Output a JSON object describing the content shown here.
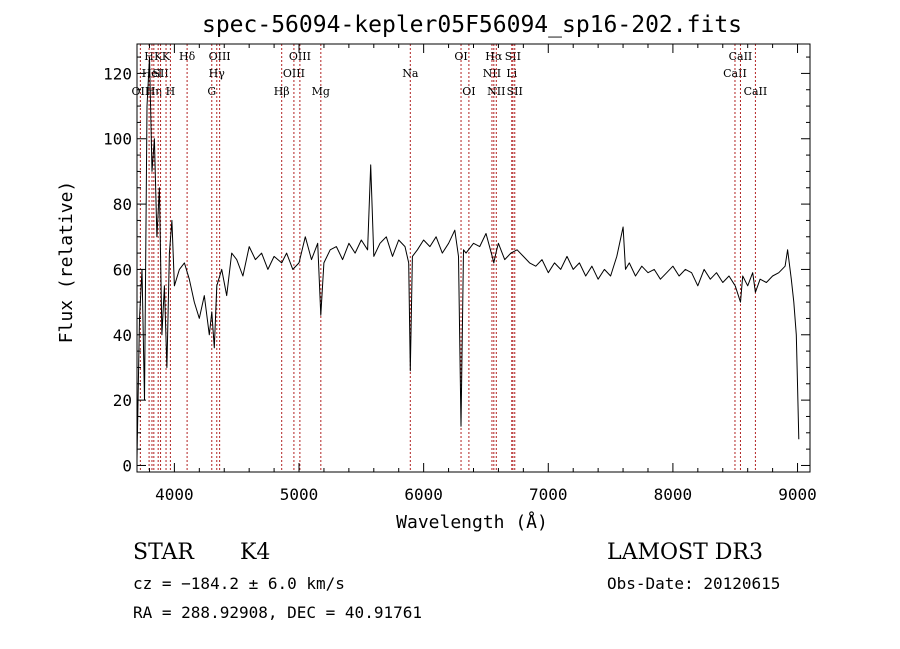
{
  "chart_data": {
    "type": "line",
    "title": "spec-56094-kepler05F56094_sp16-202.fits",
    "xlabel": "Wavelength (Å)",
    "ylabel": "Flux (relative)",
    "xlim": [
      3700,
      9100
    ],
    "ylim": [
      -2,
      129
    ],
    "xticks": [
      4000,
      5000,
      6000,
      7000,
      8000,
      9000
    ],
    "xtick_labels": [
      "4000",
      "5000",
      "6000",
      "7000",
      "8000",
      "9000"
    ],
    "yticks": [
      0,
      20,
      40,
      60,
      80,
      100,
      120
    ],
    "ytick_labels": [
      "0",
      "20",
      "40",
      "60",
      "80",
      "100",
      "120"
    ],
    "grid": false,
    "line_color": "#000000",
    "marker_color": "#b22222",
    "series": [
      {
        "name": "flux",
        "x": [
          3700,
          3720,
          3740,
          3760,
          3780,
          3800,
          3820,
          3840,
          3860,
          3880,
          3900,
          3920,
          3940,
          3960,
          3980,
          4000,
          4040,
          4080,
          4120,
          4160,
          4200,
          4240,
          4280,
          4300,
          4320,
          4340,
          4380,
          4420,
          4460,
          4500,
          4550,
          4600,
          4650,
          4700,
          4750,
          4800,
          4861,
          4900,
          4950,
          5000,
          5050,
          5100,
          5150,
          5175,
          5200,
          5250,
          5300,
          5350,
          5400,
          5450,
          5500,
          5550,
          5575,
          5600,
          5650,
          5700,
          5750,
          5800,
          5850,
          5880,
          5893,
          5910,
          5950,
          6000,
          6050,
          6100,
          6150,
          6200,
          6250,
          6280,
          6300,
          6320,
          6340,
          6400,
          6450,
          6500,
          6550,
          6563,
          6580,
          6600,
          6650,
          6700,
          6750,
          6800,
          6850,
          6900,
          6950,
          7000,
          7050,
          7100,
          7150,
          7200,
          7250,
          7300,
          7350,
          7400,
          7450,
          7500,
          7550,
          7600,
          7620,
          7650,
          7700,
          7750,
          7800,
          7850,
          7900,
          7950,
          8000,
          8050,
          8100,
          8150,
          8200,
          8250,
          8300,
          8350,
          8400,
          8450,
          8500,
          8542,
          8560,
          8600,
          8640,
          8662,
          8700,
          8750,
          8800,
          8850,
          8900,
          8920,
          8950,
          8970,
          8990,
          9000,
          9010
        ],
        "y": [
          2,
          45,
          60,
          20,
          110,
          125,
          90,
          100,
          70,
          85,
          40,
          55,
          30,
          65,
          75,
          55,
          60,
          62,
          57,
          50,
          45,
          52,
          40,
          47,
          36,
          55,
          60,
          52,
          65,
          63,
          58,
          67,
          63,
          65,
          60,
          64,
          62,
          65,
          60,
          62,
          70,
          63,
          68,
          46,
          62,
          66,
          67,
          63,
          68,
          65,
          69,
          66,
          92,
          64,
          68,
          70,
          64,
          69,
          67,
          62,
          29,
          64,
          66,
          69,
          67,
          70,
          65,
          68,
          72,
          64,
          12,
          66,
          65,
          68,
          67,
          71,
          64,
          62,
          65,
          68,
          63,
          65,
          66,
          64,
          62,
          61,
          63,
          59,
          62,
          60,
          64,
          60,
          62,
          58,
          61,
          57,
          60,
          58,
          64,
          73,
          60,
          62,
          58,
          61,
          59,
          60,
          57,
          59,
          61,
          58,
          60,
          59,
          55,
          60,
          57,
          59,
          56,
          58,
          55,
          50,
          58,
          55,
          59,
          53,
          57,
          56,
          58,
          59,
          61,
          66,
          57,
          50,
          40,
          25,
          8
        ]
      }
    ],
    "line_markers": [
      {
        "wl": 3727,
        "label": "OII",
        "row": 2
      },
      {
        "wl": 3797,
        "label": "H",
        "row": 0
      },
      {
        "wl": 3820,
        "label": "HeI",
        "row": 1
      },
      {
        "wl": 3835,
        "label": "Hη",
        "row": 2
      },
      {
        "wl": 3870,
        "label": "K",
        "row": 0
      },
      {
        "wl": 3889,
        "label": "SII",
        "row": 1
      },
      {
        "wl": 3933,
        "label": "K",
        "row": 0
      },
      {
        "wl": 3968,
        "label": "H",
        "row": 2
      },
      {
        "wl": 4102,
        "label": "Hδ",
        "row": 0
      },
      {
        "wl": 4300,
        "label": "G",
        "row": 2
      },
      {
        "wl": 4340,
        "label": "Hγ",
        "row": 1
      },
      {
        "wl": 4363,
        "label": "OIII",
        "row": 0
      },
      {
        "wl": 4861,
        "label": "Hβ",
        "row": 2
      },
      {
        "wl": 4959,
        "label": "OIII",
        "row": 1
      },
      {
        "wl": 5007,
        "label": "OIII",
        "row": 0
      },
      {
        "wl": 5175,
        "label": "Mg",
        "row": 2
      },
      {
        "wl": 5893,
        "label": "Na",
        "row": 1
      },
      {
        "wl": 6300,
        "label": "OI",
        "row": 0
      },
      {
        "wl": 6363,
        "label": "OI",
        "row": 2
      },
      {
        "wl": 6548,
        "label": "NII",
        "row": 1
      },
      {
        "wl": 6563,
        "label": "Hα",
        "row": 0
      },
      {
        "wl": 6583,
        "label": "NII",
        "row": 2
      },
      {
        "wl": 6707,
        "label": "Li",
        "row": 1
      },
      {
        "wl": 6716,
        "label": "SII",
        "row": 0
      },
      {
        "wl": 6731,
        "label": "SII",
        "row": 2
      },
      {
        "wl": 8498,
        "label": "CaII",
        "row": 1
      },
      {
        "wl": 8542,
        "label": "CaII",
        "row": 0
      },
      {
        "wl": 8662,
        "label": "CaII",
        "row": 2
      }
    ]
  },
  "info": {
    "object_class": "STAR",
    "subclass": "K4",
    "survey": "LAMOST DR3",
    "redshift_text": "cz = −184.2 ± 6.0 km/s",
    "obs_date_text": "Obs-Date: 20120615",
    "coords_text": "RA = 288.92908, DEC =  40.91761"
  }
}
